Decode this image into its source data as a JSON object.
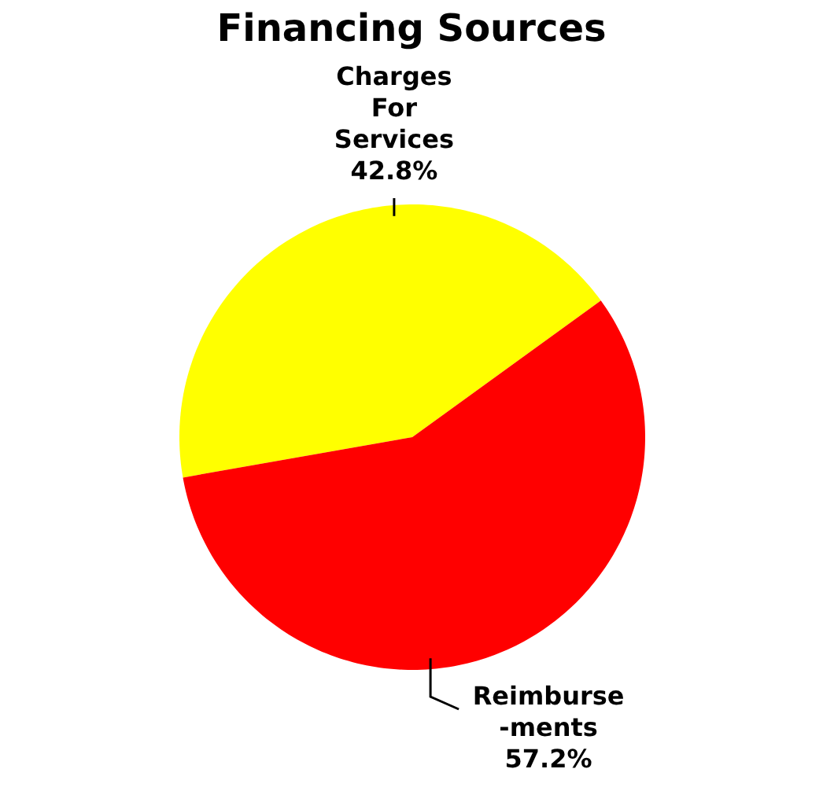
{
  "chart_data": {
    "type": "pie",
    "title": "Financing Sources",
    "categories": [
      "Charges For Services",
      "Reimburse-ments"
    ],
    "values": [
      42.8,
      57.2
    ],
    "value_labels": [
      "42.8%",
      "57.2%"
    ],
    "colors": [
      "#ffff00",
      "#ff0000"
    ]
  }
}
